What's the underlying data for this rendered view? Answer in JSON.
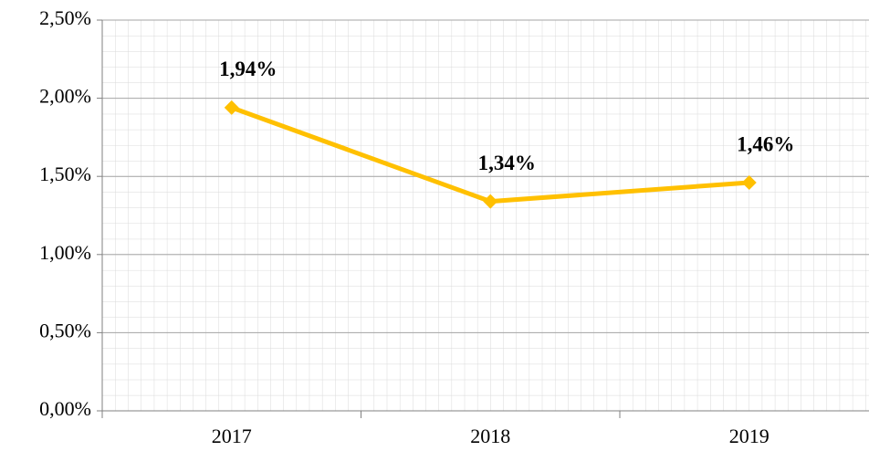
{
  "chart_data": {
    "type": "line",
    "categories": [
      "2017",
      "2018",
      "2019"
    ],
    "series": [
      {
        "color": "#ffc000",
        "values": [
          1.94,
          1.34,
          1.46
        ],
        "value_labels": [
          "1,94%",
          "1,34%",
          "1,46%"
        ]
      }
    ],
    "ylim": [
      0,
      2.5
    ],
    "yticks": [
      {
        "value": 0,
        "label": "0,00%"
      },
      {
        "value": 0.5,
        "label": "0,50%"
      },
      {
        "value": 1,
        "label": "1,00%"
      },
      {
        "value": 1.5,
        "label": "1,50%"
      },
      {
        "value": 2,
        "label": "2,00%"
      },
      {
        "value": 2.5,
        "label": "2,50%"
      }
    ],
    "grid": true
  }
}
